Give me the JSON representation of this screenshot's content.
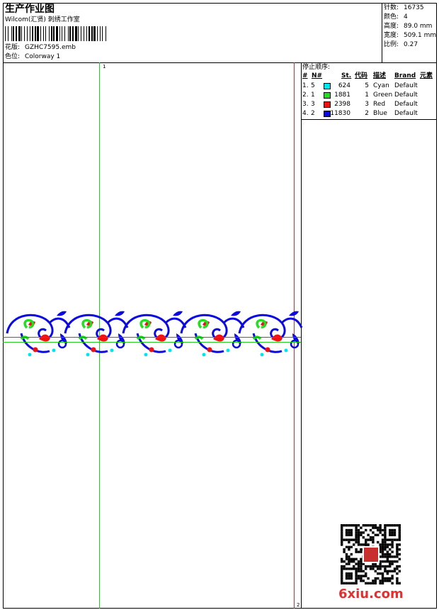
{
  "header": {
    "title": "生产作业图",
    "studio": "Wilcom(汇贤) 刺绣工作室",
    "design_label": "花版:",
    "design": "GZHC7595.emb",
    "colorway_label": "色位:",
    "colorway": "Colorway 1"
  },
  "stats": [
    {
      "label": "针数:",
      "value": "16735"
    },
    {
      "label": "颜色:",
      "value": "4"
    },
    {
      "label": "高度:",
      "value": "89.0 mm"
    },
    {
      "label": "宽度:",
      "value": "509.1 mm"
    },
    {
      "label": "比例:",
      "value": "0.27"
    }
  ],
  "stop_sequence": {
    "title": "停止顺序:",
    "headers": [
      "#",
      "N#",
      "St.",
      "代码",
      "描述",
      "Brand",
      "元素"
    ],
    "rows": [
      {
        "index": "1.",
        "needle": "5",
        "color": "#00e5ee",
        "stitches": "624",
        "code": "5",
        "description": "Cyan",
        "brand": "Default"
      },
      {
        "index": "2.",
        "needle": "1",
        "color": "#22dd22",
        "stitches": "1881",
        "code": "1",
        "description": "Green",
        "brand": "Default"
      },
      {
        "index": "3.",
        "needle": "3",
        "color": "#ee1111",
        "stitches": "2398",
        "code": "3",
        "description": "Red",
        "brand": "Default"
      },
      {
        "index": "4.",
        "needle": "2",
        "color": "#0a0ae0",
        "stitches": "11830",
        "code": "2",
        "description": "Blue",
        "brand": "Default"
      }
    ]
  },
  "markers": [
    "1",
    "2"
  ],
  "watermark": "6xiu.com"
}
